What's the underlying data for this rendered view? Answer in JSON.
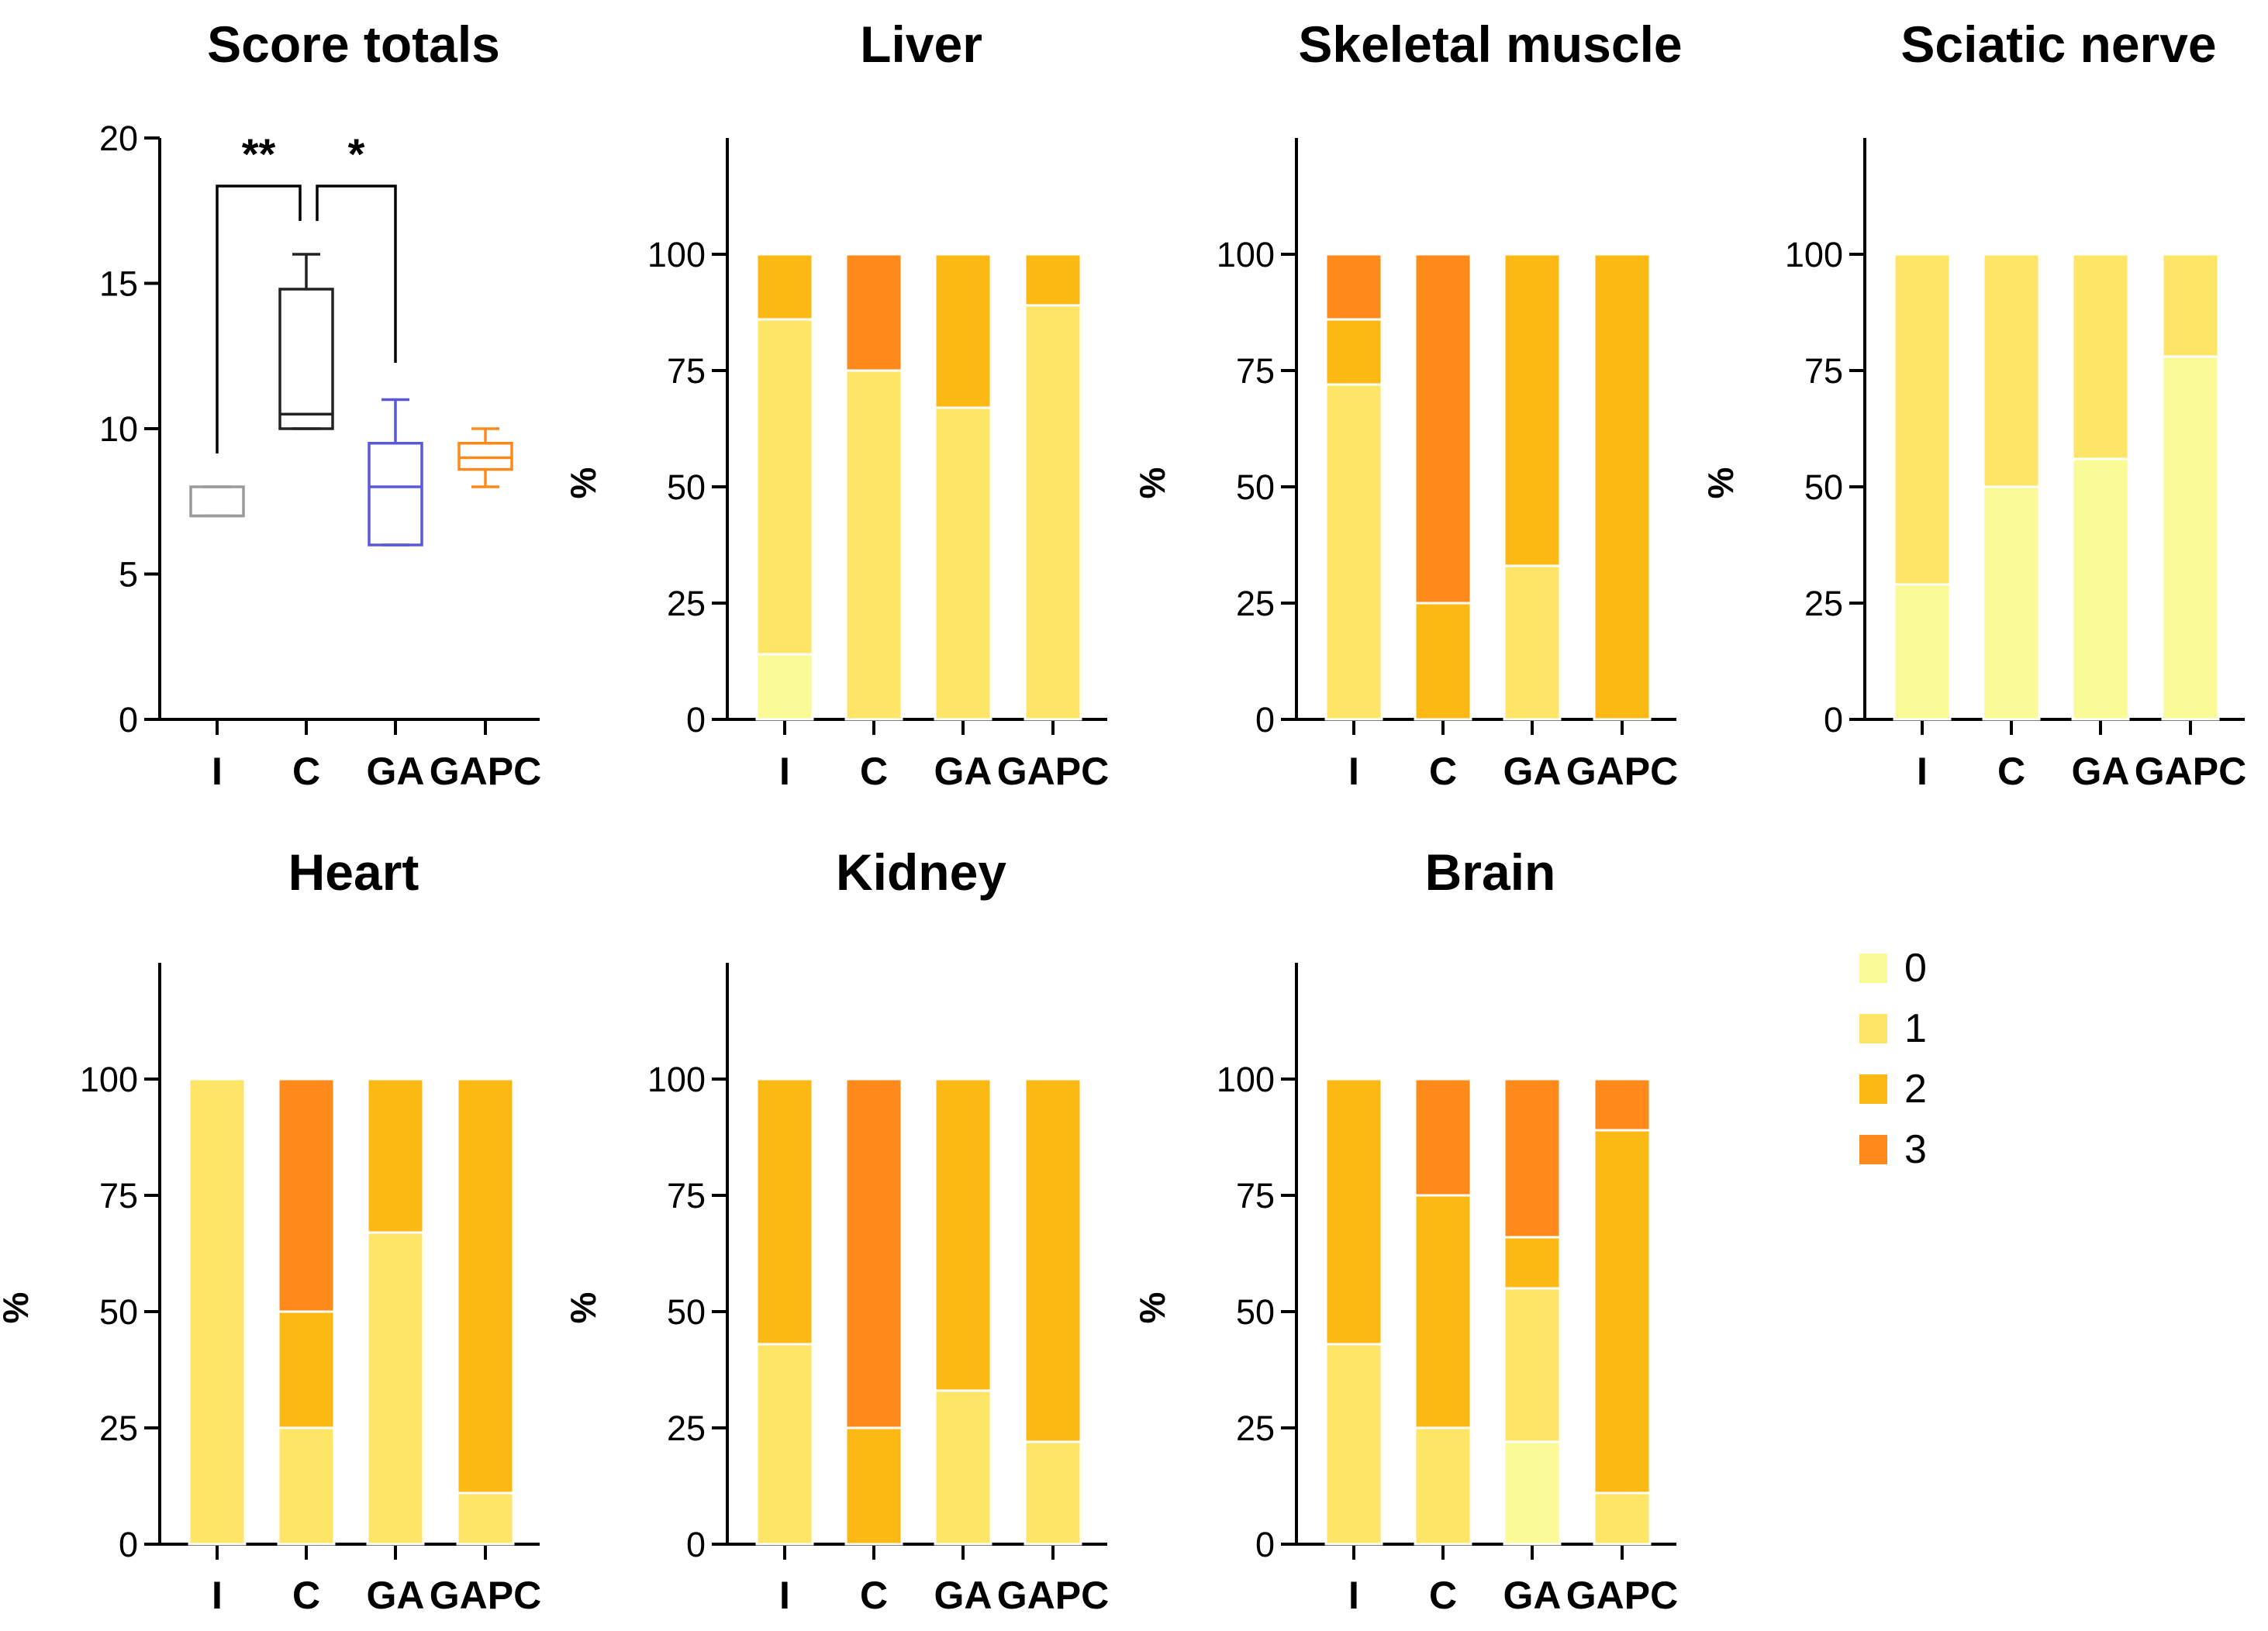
{
  "chart_data": [
    {
      "type": "box",
      "title": "Score totals",
      "categories": [
        "I",
        "C",
        "GA",
        "GAPC"
      ],
      "ylabel": "",
      "ylim": [
        0,
        20
      ],
      "yticks": [
        "0",
        "5",
        "10",
        "15",
        "20"
      ],
      "colors": [
        "#9a9a9a",
        "#222222",
        "#5a5ad6",
        "#ff8a1c"
      ],
      "boxes": [
        {
          "min": 7,
          "q1": 7,
          "median": 7,
          "q3": 8,
          "max": 8
        },
        {
          "min": 10,
          "q1": 10,
          "median": 10.5,
          "q3": 14.8,
          "max": 16
        },
        {
          "min": 6,
          "q1": 6,
          "median": 8,
          "q3": 9.5,
          "max": 11
        },
        {
          "min": 8,
          "q1": 8.6,
          "median": 9,
          "q3": 9.5,
          "max": 10
        }
      ],
      "significance": [
        {
          "between": [
            "I",
            "C"
          ],
          "label": "**"
        },
        {
          "between": [
            "C",
            "GA"
          ],
          "label": "*"
        }
      ]
    },
    {
      "type": "stacked_bar",
      "title": "Liver",
      "ylabel": "%",
      "categories": [
        "I",
        "C",
        "GA",
        "GAPC"
      ],
      "ylim": [
        0,
        125
      ],
      "yticks": [
        "0",
        "25",
        "50",
        "75",
        "100"
      ],
      "series": [
        {
          "name": "0",
          "values": [
            14,
            0,
            0,
            0
          ]
        },
        {
          "name": "1",
          "values": [
            72,
            75,
            67,
            89
          ]
        },
        {
          "name": "2",
          "values": [
            14,
            0,
            33,
            11
          ]
        },
        {
          "name": "3",
          "values": [
            0,
            25,
            0,
            0
          ]
        }
      ]
    },
    {
      "type": "stacked_bar",
      "title": "Skeletal muscle",
      "ylabel": "%",
      "categories": [
        "I",
        "C",
        "GA",
        "GAPC"
      ],
      "ylim": [
        0,
        125
      ],
      "yticks": [
        "0",
        "25",
        "50",
        "75",
        "100"
      ],
      "series": [
        {
          "name": "0",
          "values": [
            0,
            0,
            0,
            0
          ]
        },
        {
          "name": "1",
          "values": [
            72,
            0,
            33,
            0
          ]
        },
        {
          "name": "2",
          "values": [
            14,
            25,
            67,
            100
          ]
        },
        {
          "name": "3",
          "values": [
            14,
            75,
            0,
            0
          ]
        }
      ]
    },
    {
      "type": "stacked_bar",
      "title": "Sciatic nerve",
      "ylabel": "%",
      "categories": [
        "I",
        "C",
        "GA",
        "GAPC"
      ],
      "ylim": [
        0,
        125
      ],
      "yticks": [
        "0",
        "25",
        "50",
        "75",
        "100"
      ],
      "series": [
        {
          "name": "0",
          "values": [
            29,
            50,
            56,
            78
          ]
        },
        {
          "name": "1",
          "values": [
            71,
            50,
            44,
            22
          ]
        },
        {
          "name": "2",
          "values": [
            0,
            0,
            0,
            0
          ]
        },
        {
          "name": "3",
          "values": [
            0,
            0,
            0,
            0
          ]
        }
      ]
    },
    {
      "type": "stacked_bar",
      "title": "Heart",
      "ylabel": "%",
      "categories": [
        "I",
        "C",
        "GA",
        "GAPC"
      ],
      "ylim": [
        0,
        125
      ],
      "yticks": [
        "0",
        "25",
        "50",
        "75",
        "100"
      ],
      "series": [
        {
          "name": "0",
          "values": [
            0,
            0,
            0,
            0
          ]
        },
        {
          "name": "1",
          "values": [
            100,
            25,
            67,
            11
          ]
        },
        {
          "name": "2",
          "values": [
            0,
            25,
            33,
            89
          ]
        },
        {
          "name": "3",
          "values": [
            0,
            50,
            0,
            0
          ]
        }
      ]
    },
    {
      "type": "stacked_bar",
      "title": "Kidney",
      "ylabel": "%",
      "categories": [
        "I",
        "C",
        "GA",
        "GAPC"
      ],
      "ylim": [
        0,
        125
      ],
      "yticks": [
        "0",
        "25",
        "50",
        "75",
        "100"
      ],
      "series": [
        {
          "name": "0",
          "values": [
            0,
            0,
            0,
            0
          ]
        },
        {
          "name": "1",
          "values": [
            43,
            0,
            33,
            22
          ]
        },
        {
          "name": "2",
          "values": [
            57,
            25,
            67,
            78
          ]
        },
        {
          "name": "3",
          "values": [
            0,
            75,
            0,
            0
          ]
        }
      ]
    },
    {
      "type": "stacked_bar",
      "title": "Brain",
      "ylabel": "%",
      "categories": [
        "I",
        "C",
        "GA",
        "GAPC"
      ],
      "ylim": [
        0,
        125
      ],
      "yticks": [
        "0",
        "25",
        "50",
        "75",
        "100"
      ],
      "series": [
        {
          "name": "0",
          "values": [
            0,
            0,
            22,
            0
          ]
        },
        {
          "name": "1",
          "values": [
            43,
            25,
            33,
            11
          ]
        },
        {
          "name": "2",
          "values": [
            57,
            50,
            11,
            78
          ]
        },
        {
          "name": "3",
          "values": [
            0,
            25,
            34,
            11
          ]
        }
      ]
    }
  ],
  "legend": {
    "entries": [
      {
        "label": "0",
        "color": "#fafa96"
      },
      {
        "label": "1",
        "color": "#ffe566"
      },
      {
        "label": "2",
        "color": "#fdb913"
      },
      {
        "label": "3",
        "color": "#ff8a1c"
      }
    ]
  }
}
